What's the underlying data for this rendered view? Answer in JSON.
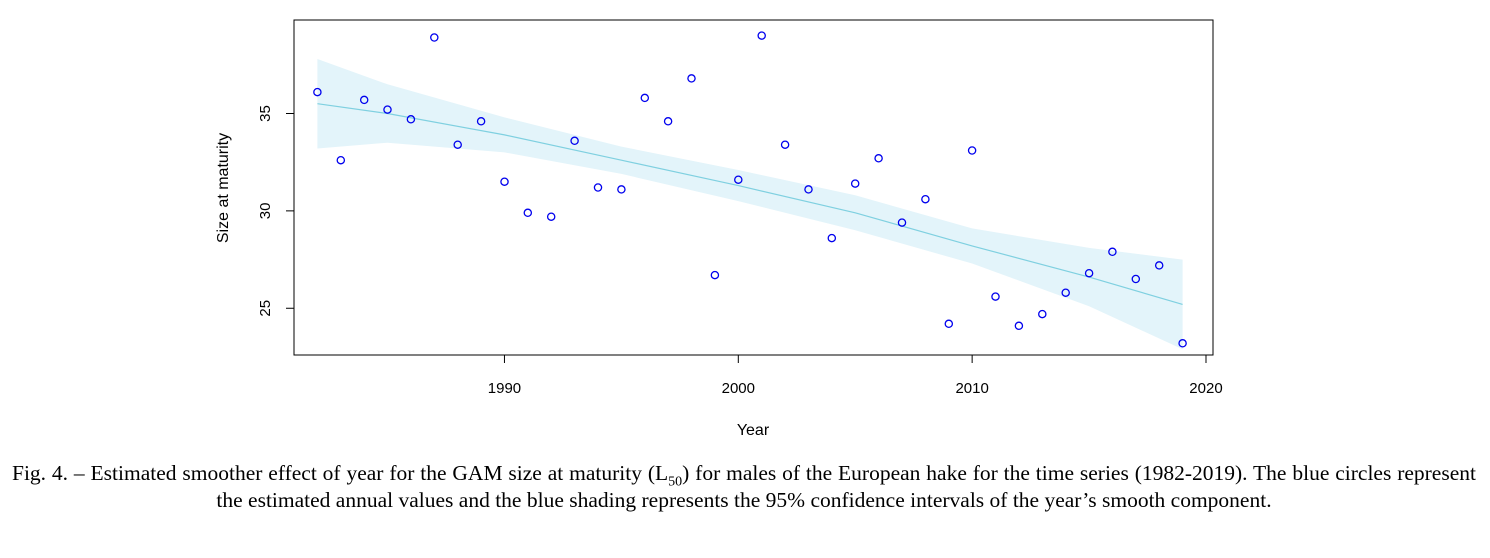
{
  "chart_data": {
    "type": "scatter",
    "xlabel": "Year",
    "ylabel": "Size at maturity",
    "xlim": [
      1981,
      2020.3
    ],
    "ylim": [
      22.6,
      39.8
    ],
    "x_ticks": [
      1990,
      2000,
      2010,
      2020
    ],
    "y_ticks": [
      25,
      30,
      35
    ],
    "point_color": "#0000ee",
    "smooth_color": "#7fd0e0",
    "band_color": "#e3f4fa",
    "points": {
      "x": [
        1982,
        1983,
        1984,
        1985,
        1986,
        1987,
        1988,
        1989,
        1990,
        1991,
        1992,
        1993,
        1994,
        1995,
        1996,
        1997,
        1998,
        1999,
        2000,
        2001,
        2002,
        2003,
        2004,
        2005,
        2006,
        2007,
        2008,
        2009,
        2010,
        2011,
        2012,
        2013,
        2014,
        2015,
        2016,
        2017,
        2018,
        2019
      ],
      "y": [
        36.1,
        32.6,
        35.7,
        35.2,
        34.7,
        38.9,
        33.4,
        34.6,
        31.5,
        29.9,
        29.7,
        33.6,
        31.2,
        31.1,
        35.8,
        34.6,
        36.8,
        26.7,
        31.6,
        39.0,
        33.4,
        31.1,
        28.6,
        31.4,
        32.7,
        29.4,
        30.6,
        24.2,
        33.1,
        25.6,
        24.1,
        24.7,
        25.8,
        26.8,
        27.9,
        26.5,
        27.2,
        23.2
      ]
    },
    "smooth": {
      "x": [
        1982,
        1985,
        1990,
        1995,
        2000,
        2005,
        2010,
        2015,
        2019
      ],
      "fit": [
        35.5,
        35.0,
        33.9,
        32.6,
        31.3,
        29.9,
        28.2,
        26.6,
        25.2
      ],
      "lower": [
        33.2,
        33.5,
        33.0,
        31.9,
        30.5,
        29.0,
        27.3,
        25.1,
        22.9
      ],
      "upper": [
        37.8,
        36.5,
        34.8,
        33.3,
        32.1,
        30.8,
        29.1,
        28.1,
        27.5
      ]
    }
  },
  "caption": {
    "line1_prefix": "Fig. 4. – Estimated smoother effect of year for the GAM size at maturity (L",
    "line1_sub": "50",
    "line1_suffix": ") for males of the European hake for the time series (1982-2019).",
    "rest": "The blue circles represent the estimated annual values and the blue shading represents the 95% confidence intervals of the year’s smooth component."
  }
}
